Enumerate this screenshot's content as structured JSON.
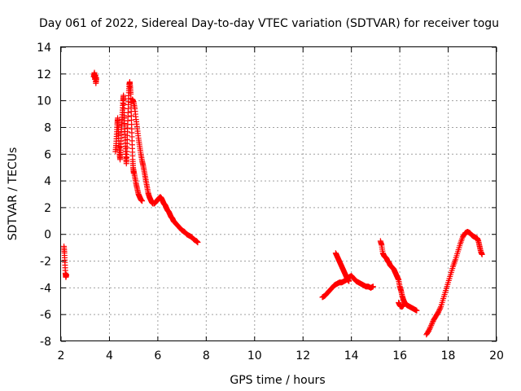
{
  "chart_data": {
    "type": "scatter",
    "title": "Day 061 of 2022, Sidereal Day-to-day VTEC variation (SDTVAR) for receiver togu",
    "xlabel": "GPS time / hours",
    "ylabel": "SDTVAR / TECUs",
    "xlim": [
      2,
      20
    ],
    "ylim": [
      -8,
      14
    ],
    "xticks": [
      "2",
      "4",
      "6",
      "8",
      "10",
      "12",
      "14",
      "16",
      "18",
      "20"
    ],
    "yticks": [
      "-8",
      "-6",
      "-4",
      "-2",
      "0",
      "2",
      "4",
      "6",
      "8",
      "10",
      "12",
      "14"
    ],
    "grid": true,
    "marker": "+",
    "color": "#ff0000",
    "series": [
      {
        "name": "SDTVAR",
        "segments": [
          [
            [
              2.12,
              -0.9
            ],
            [
              2.14,
              -1.4
            ],
            [
              2.16,
              -2.1
            ],
            [
              2.18,
              -2.9
            ],
            [
              2.2,
              -3.2
            ],
            [
              2.22,
              -3.0
            ]
          ],
          [
            [
              3.35,
              11.8
            ],
            [
              3.38,
              12.1
            ],
            [
              3.4,
              11.6
            ],
            [
              3.42,
              11.9
            ],
            [
              3.44,
              11.3
            ],
            [
              3.46,
              11.7
            ]
          ],
          [
            [
              4.25,
              6.2
            ],
            [
              4.28,
              6.8
            ],
            [
              4.3,
              7.5
            ],
            [
              4.32,
              8.2
            ],
            [
              4.34,
              8.7
            ],
            [
              4.36,
              8.0
            ],
            [
              4.38,
              7.4
            ],
            [
              4.4,
              6.6
            ],
            [
              4.42,
              6.0
            ],
            [
              4.44,
              5.6
            ],
            [
              4.46,
              6.3
            ],
            [
              4.48,
              7.2
            ],
            [
              4.5,
              8.1
            ],
            [
              4.52,
              8.6
            ],
            [
              4.54,
              9.3
            ],
            [
              4.56,
              10.0
            ],
            [
              4.58,
              10.4
            ],
            [
              4.6,
              9.1
            ],
            [
              4.62,
              8.3
            ],
            [
              4.64,
              7.5
            ],
            [
              4.66,
              6.6
            ],
            [
              4.68,
              5.8
            ],
            [
              4.7,
              5.3
            ],
            [
              4.72,
              6.2
            ],
            [
              4.74,
              7.4
            ],
            [
              4.76,
              8.5
            ],
            [
              4.78,
              9.7
            ],
            [
              4.8,
              10.6
            ],
            [
              4.82,
              11.2
            ],
            [
              4.84,
              11.4
            ],
            [
              4.86,
              11.0
            ],
            [
              4.88,
              10.5
            ],
            [
              4.9,
              9.2
            ],
            [
              4.92,
              7.9
            ],
            [
              4.94,
              6.7
            ],
            [
              4.96,
              5.6
            ],
            [
              4.98,
              5.0
            ],
            [
              5.0,
              4.6
            ]
          ],
          [
            [
              4.95,
              10.1
            ],
            [
              5.0,
              9.9
            ],
            [
              5.05,
              9.4
            ],
            [
              5.1,
              8.6
            ],
            [
              5.15,
              7.9
            ],
            [
              5.2,
              7.2
            ],
            [
              5.25,
              6.6
            ],
            [
              5.3,
              6.0
            ],
            [
              5.35,
              5.5
            ],
            [
              5.4,
              5.1
            ],
            [
              5.45,
              4.6
            ],
            [
              5.5,
              4.1
            ],
            [
              5.55,
              3.6
            ],
            [
              5.6,
              3.1
            ],
            [
              5.65,
              2.8
            ],
            [
              5.7,
              2.6
            ],
            [
              5.75,
              2.4
            ],
            [
              5.8,
              2.3
            ]
          ],
          [
            [
              5.0,
              4.8
            ],
            [
              5.05,
              4.3
            ],
            [
              5.1,
              3.8
            ],
            [
              5.15,
              3.4
            ],
            [
              5.2,
              3.0
            ],
            [
              5.25,
              2.8
            ],
            [
              5.3,
              2.6
            ],
            [
              5.35,
              2.5
            ]
          ],
          [
            [
              5.85,
              2.3
            ],
            [
              5.9,
              2.4
            ],
            [
              5.95,
              2.5
            ],
            [
              6.0,
              2.6
            ],
            [
              6.05,
              2.7
            ],
            [
              6.1,
              2.8
            ],
            [
              6.15,
              2.7
            ],
            [
              6.2,
              2.5
            ],
            [
              6.25,
              2.3
            ],
            [
              6.3,
              2.2
            ],
            [
              6.35,
              2.0
            ],
            [
              6.4,
              1.8
            ],
            [
              6.45,
              1.7
            ],
            [
              6.5,
              1.5
            ],
            [
              6.55,
              1.3
            ],
            [
              6.6,
              1.2
            ],
            [
              6.65,
              1.0
            ],
            [
              6.7,
              0.9
            ],
            [
              6.8,
              0.7
            ],
            [
              6.9,
              0.5
            ],
            [
              7.0,
              0.3
            ],
            [
              7.1,
              0.2
            ],
            [
              7.2,
              0.0
            ],
            [
              7.3,
              -0.1
            ],
            [
              7.4,
              -0.2
            ],
            [
              7.5,
              -0.4
            ],
            [
              7.6,
              -0.5
            ],
            [
              7.65,
              -0.6
            ]
          ],
          [
            [
              12.8,
              -4.7
            ],
            [
              12.9,
              -4.6
            ],
            [
              13.0,
              -4.4
            ],
            [
              13.1,
              -4.2
            ],
            [
              13.2,
              -4.0
            ],
            [
              13.3,
              -3.8
            ],
            [
              13.4,
              -3.7
            ],
            [
              13.5,
              -3.6
            ],
            [
              13.6,
              -3.6
            ],
            [
              13.7,
              -3.5
            ],
            [
              13.8,
              -3.4
            ],
            [
              13.9,
              -3.2
            ],
            [
              14.0,
              -3.1
            ],
            [
              14.1,
              -3.3
            ],
            [
              14.2,
              -3.5
            ],
            [
              14.3,
              -3.6
            ],
            [
              14.4,
              -3.7
            ],
            [
              14.5,
              -3.8
            ],
            [
              14.6,
              -3.9
            ],
            [
              14.7,
              -3.9
            ],
            [
              14.8,
              -4.0
            ],
            [
              14.9,
              -3.9
            ]
          ],
          [
            [
              13.35,
              -1.4
            ],
            [
              13.4,
              -1.6
            ],
            [
              13.45,
              -1.8
            ],
            [
              13.5,
              -2.0
            ],
            [
              13.55,
              -2.2
            ],
            [
              13.6,
              -2.4
            ],
            [
              13.65,
              -2.6
            ],
            [
              13.7,
              -2.8
            ],
            [
              13.75,
              -3.0
            ],
            [
              13.8,
              -3.2
            ],
            [
              13.85,
              -3.4
            ],
            [
              13.9,
              -3.5
            ]
          ],
          [
            [
              15.2,
              -0.5
            ],
            [
              15.25,
              -0.8
            ],
            [
              15.3,
              -1.4
            ],
            [
              15.35,
              -1.6
            ],
            [
              15.4,
              -1.7
            ],
            [
              15.45,
              -1.8
            ],
            [
              15.5,
              -2.0
            ],
            [
              15.55,
              -2.1
            ],
            [
              15.6,
              -2.3
            ],
            [
              15.65,
              -2.4
            ],
            [
              15.7,
              -2.5
            ],
            [
              15.75,
              -2.6
            ],
            [
              15.8,
              -2.8
            ],
            [
              15.85,
              -3.0
            ],
            [
              15.9,
              -3.2
            ],
            [
              15.95,
              -3.4
            ],
            [
              16.0,
              -3.9
            ],
            [
              16.05,
              -4.2
            ],
            [
              16.1,
              -4.6
            ],
            [
              16.15,
              -4.9
            ],
            [
              16.2,
              -5.1
            ],
            [
              16.25,
              -5.2
            ],
            [
              16.3,
              -5.3
            ],
            [
              16.4,
              -5.4
            ],
            [
              16.5,
              -5.5
            ],
            [
              16.6,
              -5.6
            ],
            [
              16.7,
              -5.7
            ]
          ],
          [
            [
              15.95,
              -5.1
            ],
            [
              16.0,
              -5.3
            ],
            [
              16.05,
              -5.4
            ],
            [
              16.1,
              -5.4
            ],
            [
              16.15,
              -5.3
            ]
          ],
          [
            [
              17.1,
              -7.5
            ],
            [
              17.2,
              -7.2
            ],
            [
              17.3,
              -6.8
            ],
            [
              17.4,
              -6.4
            ],
            [
              17.5,
              -6.1
            ],
            [
              17.6,
              -5.8
            ],
            [
              17.7,
              -5.4
            ],
            [
              17.8,
              -4.8
            ],
            [
              17.9,
              -4.2
            ],
            [
              18.0,
              -3.6
            ],
            [
              18.1,
              -3.0
            ],
            [
              18.2,
              -2.4
            ],
            [
              18.3,
              -1.9
            ],
            [
              18.4,
              -1.3
            ],
            [
              18.5,
              -0.7
            ],
            [
              18.6,
              -0.2
            ],
            [
              18.7,
              0.1
            ],
            [
              18.8,
              0.2
            ],
            [
              18.9,
              0.1
            ],
            [
              19.0,
              -0.1
            ],
            [
              19.1,
              -0.2
            ],
            [
              19.2,
              -0.3
            ],
            [
              19.25,
              -0.5
            ],
            [
              19.3,
              -0.9
            ],
            [
              19.35,
              -1.3
            ],
            [
              19.4,
              -1.5
            ]
          ]
        ]
      }
    ]
  }
}
